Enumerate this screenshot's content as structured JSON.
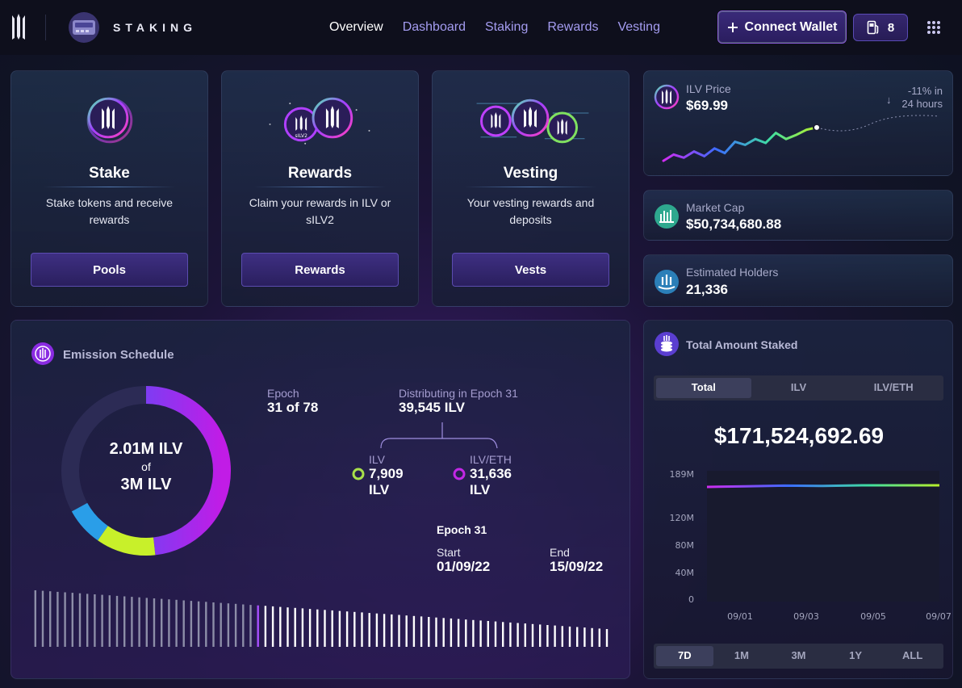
{
  "header": {
    "brand": "STAKING",
    "nav": [
      "Overview",
      "Dashboard",
      "Staking",
      "Rewards",
      "Vesting"
    ],
    "connect_label": "Connect Wallet",
    "gas_value": "8",
    "icons": [
      "trident-logo-icon",
      "staking-logo-icon",
      "plus-icon",
      "gas-pump-icon",
      "apps-grid-icon"
    ]
  },
  "cards": [
    {
      "title": "Stake",
      "desc_line1": "Stake tokens and receive",
      "desc_line2": "rewards",
      "button": "Pools"
    },
    {
      "title": "Rewards",
      "desc_line1": "Claim your rewards in ILV or",
      "desc_line2": "sILV2",
      "button": "Rewards",
      "coin_label": "sILV2"
    },
    {
      "title": "Vesting",
      "desc_line1": "Your vesting rewards and",
      "desc_line2": "deposits",
      "button": "Vests"
    }
  ],
  "price": {
    "label": "ILV Price",
    "value": "$69.99",
    "change_arrow": "↓",
    "change_line1": "-11% in",
    "change_line2": "24 hours",
    "sparkline": [
      0.06,
      0.22,
      0.14,
      0.3,
      0.18,
      0.38,
      0.26,
      0.55,
      0.47,
      0.62,
      0.52,
      0.78,
      0.62,
      0.73,
      0.86,
      0.92
    ]
  },
  "market_cap": {
    "label": "Market Cap",
    "value": "$50,734,680.88"
  },
  "holders": {
    "label": "Estimated Holders",
    "value": "21,336"
  },
  "emission": {
    "title": "Emission Schedule",
    "donut_line1": "2.01M ILV",
    "donut_line2": "of",
    "donut_line3": "3M ILV",
    "epoch_label": "Epoch",
    "epoch_value": "31 of 78",
    "distributing_label": "Distributing in Epoch 31",
    "distributing_value": "39,545 ILV",
    "ilv_label": "ILV",
    "ilv_value": "7,909",
    "ilv_unit": "ILV",
    "ilveth_label": "ILV/ETH",
    "ilveth_value": "31,636",
    "ilveth_unit": "ILV",
    "epoch_title": "Epoch 31",
    "start_label": "Start",
    "start_value": "01/09/22",
    "end_label": "End",
    "end_value": "15/09/22",
    "current_epoch": 31,
    "total_epochs": 78,
    "emitted_fraction": 0.67
  },
  "staked": {
    "title": "Total Amount Staked",
    "tabs": [
      "Total",
      "ILV",
      "ILV/ETH"
    ],
    "active_tab": "Total",
    "value": "$171,524,692.69",
    "ranges": [
      "7D",
      "1M",
      "3M",
      "1Y",
      "ALL"
    ],
    "active_range": "7D"
  },
  "chart_data": {
    "type": "line",
    "title": "Total Amount Staked",
    "y_tick_labels": [
      "189M",
      "120M",
      "80M",
      "40M",
      "0"
    ],
    "y_ticks": [
      189,
      120,
      80,
      40,
      0
    ],
    "x_tick_labels": [
      "09/01",
      "09/03",
      "09/05",
      "09/07"
    ],
    "x": [
      1,
      2,
      3,
      4,
      5,
      6,
      7
    ],
    "series": [
      {
        "name": "Total",
        "values": [
          171.0,
          171.2,
          171.4,
          171.3,
          171.5,
          171.5,
          171.5
        ]
      }
    ],
    "ylim": [
      0,
      189
    ]
  }
}
